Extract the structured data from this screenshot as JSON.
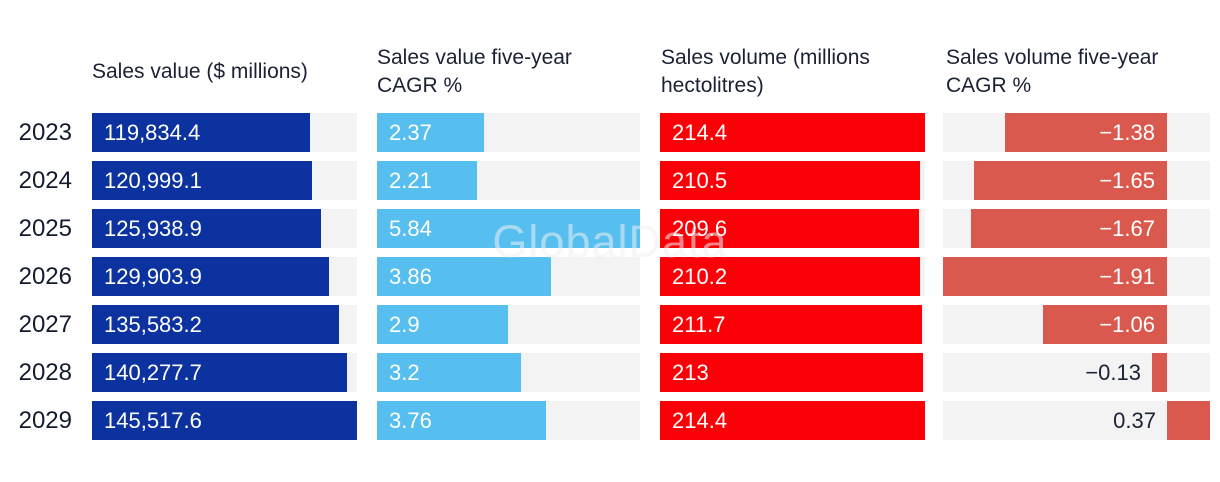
{
  "watermark": "GlobalData",
  "chart_data": {
    "type": "bar",
    "orientation": "horizontal",
    "grid": false,
    "legend": "none",
    "categories": [
      "2023",
      "2024",
      "2025",
      "2026",
      "2027",
      "2028",
      "2029"
    ],
    "headers": [
      {
        "label": "Sales value ($ millions)"
      },
      {
        "label": "Sales value five-year\nCAGR %"
      },
      {
        "label": "Sales volume (millions\nhectolitres)"
      },
      {
        "label": "Sales volume five-year\nCAGR %"
      }
    ],
    "series": [
      {
        "name": "Sales value ($ millions)",
        "color": "#0c32a0",
        "axis_range": [
          0,
          145517.6
        ],
        "values": [
          119834.4,
          120999.1,
          125938.9,
          129903.9,
          135583.2,
          140277.7,
          145517.6
        ],
        "labels": [
          "119,834.4",
          "120,999.1",
          "125,938.9",
          "129,903.9",
          "135,583.2",
          "140,277.7",
          "145,517.6"
        ]
      },
      {
        "name": "Sales value five-year CAGR %",
        "color": "#57bef0",
        "axis_range": [
          0,
          5.84
        ],
        "values": [
          2.37,
          2.21,
          5.84,
          3.86,
          2.9,
          3.2,
          3.76
        ],
        "labels": [
          "2.37",
          "2.21",
          "5.84",
          "3.86",
          "2.9",
          "3.2",
          "3.76"
        ]
      },
      {
        "name": "Sales volume (millions hectolitres)",
        "color": "#fb0007",
        "axis_range": [
          0,
          214.4
        ],
        "values": [
          214.4,
          210.5,
          209.6,
          210.2,
          211.7,
          213,
          214.4
        ],
        "labels": [
          "214.4",
          "210.5",
          "209.6",
          "210.2",
          "211.7",
          "213",
          "214.4"
        ]
      },
      {
        "name": "Sales volume five-year CAGR %",
        "color": "#d9594e",
        "axis_range": [
          -1.91,
          0.37
        ],
        "values": [
          -1.38,
          -1.65,
          -1.67,
          -1.91,
          -1.06,
          -0.13,
          0.37
        ],
        "labels": [
          "−1.38",
          "−1.65",
          "−1.67",
          "−1.91",
          "−1.06",
          "−0.13",
          "0.37"
        ]
      }
    ],
    "bar_background_color": "#f2f3f2",
    "text_color": "#1b2134"
  }
}
